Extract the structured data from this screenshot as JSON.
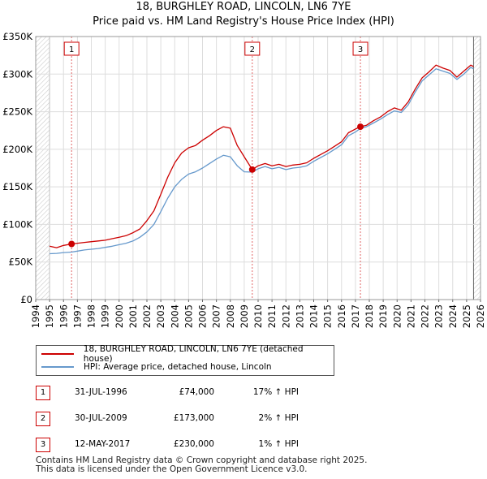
{
  "chart_data": {
    "type": "line",
    "title": "18, BURGHLEY ROAD, LINCOLN, LN6 7YE",
    "subtitle": "Price paid vs. HM Land Registry's House Price Index (HPI)",
    "xlabel": "",
    "ylabel": "",
    "xlim": [
      1994,
      2026
    ],
    "ylim": [
      0,
      350000
    ],
    "x_ticks": [
      "1994",
      "1995",
      "1996",
      "1997",
      "1998",
      "1999",
      "2000",
      "2001",
      "2002",
      "2003",
      "2004",
      "2005",
      "2006",
      "2007",
      "2008",
      "2009",
      "2010",
      "2011",
      "2012",
      "2013",
      "2014",
      "2015",
      "2016",
      "2017",
      "2018",
      "2019",
      "2020",
      "2021",
      "2022",
      "2023",
      "2024",
      "2025",
      "2026"
    ],
    "y_ticks": [
      {
        "value": 0,
        "label": "£0"
      },
      {
        "value": 50000,
        "label": "£50K"
      },
      {
        "value": 100000,
        "label": "£100K"
      },
      {
        "value": 150000,
        "label": "£150K"
      },
      {
        "value": 200000,
        "label": "£200K"
      },
      {
        "value": 250000,
        "label": "£250K"
      },
      {
        "value": 300000,
        "label": "£300K"
      },
      {
        "value": 350000,
        "label": "£350K"
      }
    ],
    "grid": true,
    "data_range": [
      1995.0,
      2025.5
    ],
    "series": [
      {
        "name": "18, BURGHLEY ROAD, LINCOLN, LN6 7YE (detached house)",
        "color": "#cc0000",
        "points": [
          [
            1995.0,
            71000
          ],
          [
            1995.5,
            69000
          ],
          [
            1996.0,
            72000
          ],
          [
            1996.58,
            74000
          ],
          [
            1997.0,
            75000
          ],
          [
            1997.5,
            76000
          ],
          [
            1998.0,
            77000
          ],
          [
            1998.5,
            78000
          ],
          [
            1999.0,
            79000
          ],
          [
            1999.5,
            81000
          ],
          [
            2000.0,
            83000
          ],
          [
            2000.5,
            85000
          ],
          [
            2001.0,
            89000
          ],
          [
            2001.5,
            94000
          ],
          [
            2002.0,
            105000
          ],
          [
            2002.5,
            118000
          ],
          [
            2003.0,
            140000
          ],
          [
            2003.5,
            163000
          ],
          [
            2004.0,
            182000
          ],
          [
            2004.5,
            195000
          ],
          [
            2005.0,
            202000
          ],
          [
            2005.5,
            205000
          ],
          [
            2006.0,
            212000
          ],
          [
            2006.5,
            218000
          ],
          [
            2007.0,
            225000
          ],
          [
            2007.5,
            230000
          ],
          [
            2008.0,
            228000
          ],
          [
            2008.5,
            205000
          ],
          [
            2009.0,
            190000
          ],
          [
            2009.58,
            173000
          ],
          [
            2010.0,
            178000
          ],
          [
            2010.5,
            181000
          ],
          [
            2011.0,
            178000
          ],
          [
            2011.5,
            180000
          ],
          [
            2012.0,
            177000
          ],
          [
            2012.5,
            179000
          ],
          [
            2013.0,
            180000
          ],
          [
            2013.5,
            182000
          ],
          [
            2014.0,
            188000
          ],
          [
            2014.5,
            193000
          ],
          [
            2015.0,
            198000
          ],
          [
            2015.5,
            204000
          ],
          [
            2016.0,
            210000
          ],
          [
            2016.5,
            222000
          ],
          [
            2017.0,
            227000
          ],
          [
            2017.36,
            230000
          ],
          [
            2017.8,
            232000
          ],
          [
            2018.3,
            238000
          ],
          [
            2018.8,
            243000
          ],
          [
            2019.3,
            250000
          ],
          [
            2019.8,
            255000
          ],
          [
            2020.3,
            252000
          ],
          [
            2020.8,
            263000
          ],
          [
            2021.3,
            280000
          ],
          [
            2021.8,
            295000
          ],
          [
            2022.3,
            303000
          ],
          [
            2022.8,
            312000
          ],
          [
            2023.3,
            308000
          ],
          [
            2023.8,
            305000
          ],
          [
            2024.3,
            296000
          ],
          [
            2024.8,
            304000
          ],
          [
            2025.3,
            312000
          ],
          [
            2025.5,
            310000
          ]
        ]
      },
      {
        "name": "HPI: Average price, detached house, Lincoln",
        "color": "#6699cc",
        "points": [
          [
            1995.0,
            61000
          ],
          [
            1995.5,
            61500
          ],
          [
            1996.0,
            62500
          ],
          [
            1996.58,
            63200
          ],
          [
            1997.0,
            64500
          ],
          [
            1997.5,
            66000
          ],
          [
            1998.0,
            67000
          ],
          [
            1998.5,
            68000
          ],
          [
            1999.0,
            69500
          ],
          [
            1999.5,
            71000
          ],
          [
            2000.0,
            73000
          ],
          [
            2000.5,
            75000
          ],
          [
            2001.0,
            78000
          ],
          [
            2001.5,
            83000
          ],
          [
            2002.0,
            90000
          ],
          [
            2002.5,
            100000
          ],
          [
            2003.0,
            117000
          ],
          [
            2003.5,
            135000
          ],
          [
            2004.0,
            150000
          ],
          [
            2004.5,
            160000
          ],
          [
            2005.0,
            167000
          ],
          [
            2005.5,
            170000
          ],
          [
            2006.0,
            175000
          ],
          [
            2006.5,
            181000
          ],
          [
            2007.0,
            187000
          ],
          [
            2007.5,
            192000
          ],
          [
            2008.0,
            190000
          ],
          [
            2008.5,
            178000
          ],
          [
            2009.0,
            170000
          ],
          [
            2009.58,
            169600
          ],
          [
            2010.0,
            174000
          ],
          [
            2010.5,
            177000
          ],
          [
            2011.0,
            174000
          ],
          [
            2011.5,
            176000
          ],
          [
            2012.0,
            173000
          ],
          [
            2012.5,
            175000
          ],
          [
            2013.0,
            176000
          ],
          [
            2013.5,
            178000
          ],
          [
            2014.0,
            184000
          ],
          [
            2014.5,
            189000
          ],
          [
            2015.0,
            194000
          ],
          [
            2015.5,
            200000
          ],
          [
            2016.0,
            206000
          ],
          [
            2016.5,
            218000
          ],
          [
            2017.0,
            223000
          ],
          [
            2017.36,
            227700
          ],
          [
            2017.8,
            230000
          ],
          [
            2018.3,
            235000
          ],
          [
            2018.8,
            240000
          ],
          [
            2019.3,
            246000
          ],
          [
            2019.8,
            251000
          ],
          [
            2020.3,
            249000
          ],
          [
            2020.8,
            259000
          ],
          [
            2021.3,
            276000
          ],
          [
            2021.8,
            291000
          ],
          [
            2022.3,
            299000
          ],
          [
            2022.8,
            307000
          ],
          [
            2023.3,
            304000
          ],
          [
            2023.8,
            301000
          ],
          [
            2024.3,
            293000
          ],
          [
            2024.8,
            300000
          ],
          [
            2025.3,
            309000
          ],
          [
            2025.5,
            307000
          ]
        ]
      }
    ],
    "sales": [
      {
        "label": "1",
        "x": 1996.58,
        "price": 74000
      },
      {
        "label": "2",
        "x": 2009.58,
        "price": 173000
      },
      {
        "label": "3",
        "x": 2017.36,
        "price": 230000
      }
    ]
  },
  "legend": {
    "property_label": "18, BURGHLEY ROAD, LINCOLN, LN6 7YE (detached house)",
    "hpi_label": "HPI: Average price, detached house, Lincoln"
  },
  "sales_table": [
    {
      "num": "1",
      "date": "31-JUL-1996",
      "price": "£74,000",
      "hpi": "17% ↑ HPI"
    },
    {
      "num": "2",
      "date": "30-JUL-2009",
      "price": "£173,000",
      "hpi": "2% ↑ HPI"
    },
    {
      "num": "3",
      "date": "12-MAY-2017",
      "price": "£230,000",
      "hpi": "1% ↑ HPI"
    }
  ],
  "footer": {
    "line1": "Contains HM Land Registry data © Crown copyright and database right 2025.",
    "line2": "This data is licensed under the Open Government Licence v3.0."
  },
  "colors": {
    "property": "#cc0000",
    "hpi": "#6699cc",
    "grid": "#dddddd",
    "hatch": "#cccccc"
  }
}
